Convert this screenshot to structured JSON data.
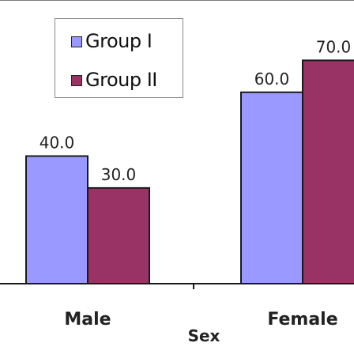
{
  "chart_data": {
    "type": "bar",
    "categories": [
      "Male",
      "Female"
    ],
    "series": [
      {
        "name": "Group I",
        "values": [
          40.0,
          60.0
        ],
        "color": "#9999ff"
      },
      {
        "name": "Group II",
        "values": [
          30.0,
          70.0
        ],
        "color": "#993366"
      }
    ],
    "xlabel": "Sex",
    "ylabel": "",
    "ylim": [
      0,
      80
    ],
    "value_labels": [
      "40.0",
      "60.0",
      "30.0",
      "70.0"
    ],
    "grid": false,
    "legend_position": "top-left"
  },
  "legend": {
    "group1_label": "Group I",
    "group2_label": "Group II"
  }
}
